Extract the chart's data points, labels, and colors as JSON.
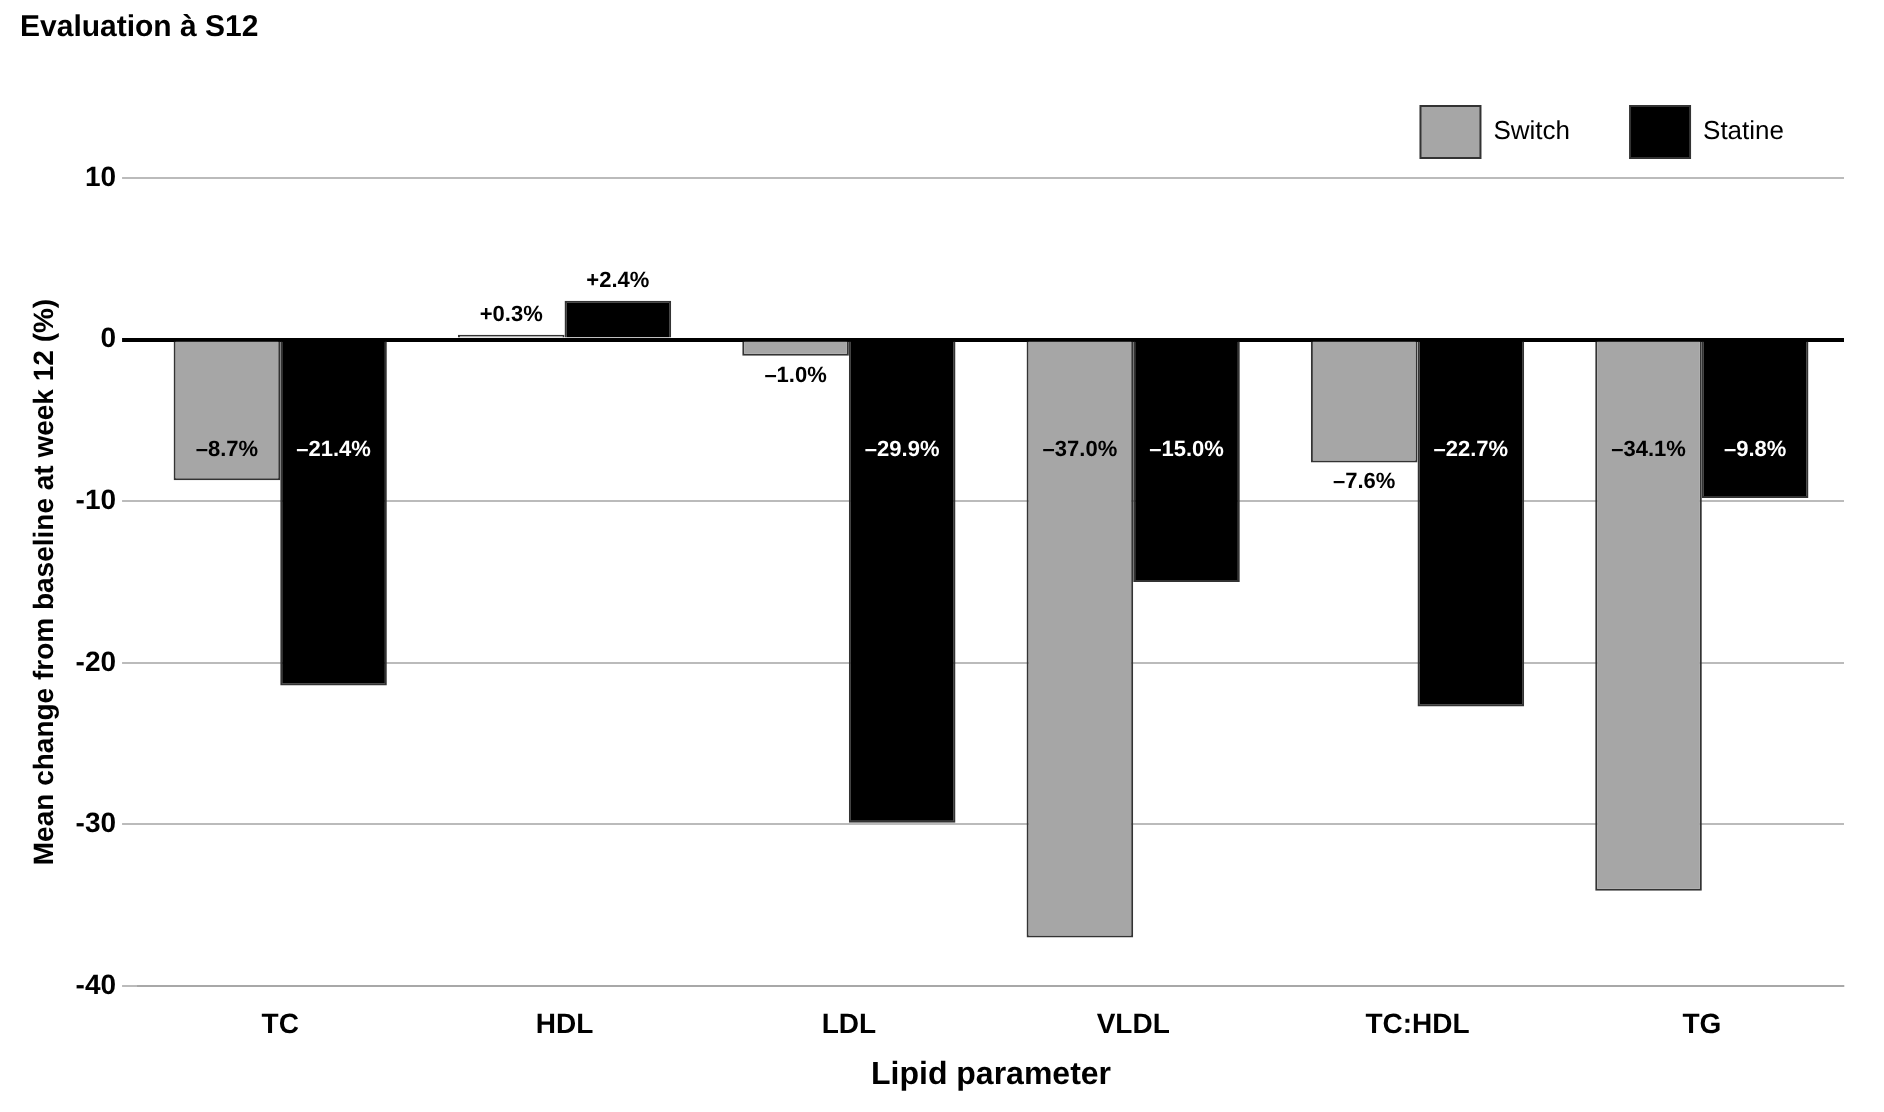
{
  "chart_data": {
    "type": "bar",
    "title": "Evaluation à S12",
    "xlabel": "Lipid parameter",
    "ylabel": "Mean change from baseline at week 12 (%)",
    "categories": [
      "TC",
      "HDL",
      "LDL",
      "VLDL",
      "TC:HDL",
      "TG"
    ],
    "series": [
      {
        "name": "Switch",
        "color": "#a6a6a6",
        "values": [
          -8.7,
          0.3,
          -1.0,
          -37.0,
          -7.6,
          -34.1
        ],
        "value_labels": [
          "–8.7%",
          "+0.3%",
          "–1.0%",
          "–37.0%",
          "–7.6%",
          "–34.1%"
        ]
      },
      {
        "name": "Statine",
        "color": "#000000",
        "values": [
          -21.4,
          2.4,
          -29.9,
          -15.0,
          -22.7,
          -9.8
        ],
        "value_labels": [
          "–21.4%",
          "+2.4%",
          "–29.9%",
          "–15.0%",
          "–22.7%",
          "–9.8%"
        ]
      }
    ],
    "ylim": [
      -40,
      10
    ],
    "yticks": [
      -40,
      -30,
      -20,
      -10,
      0,
      10
    ],
    "grid": "y",
    "legend": "top right"
  }
}
